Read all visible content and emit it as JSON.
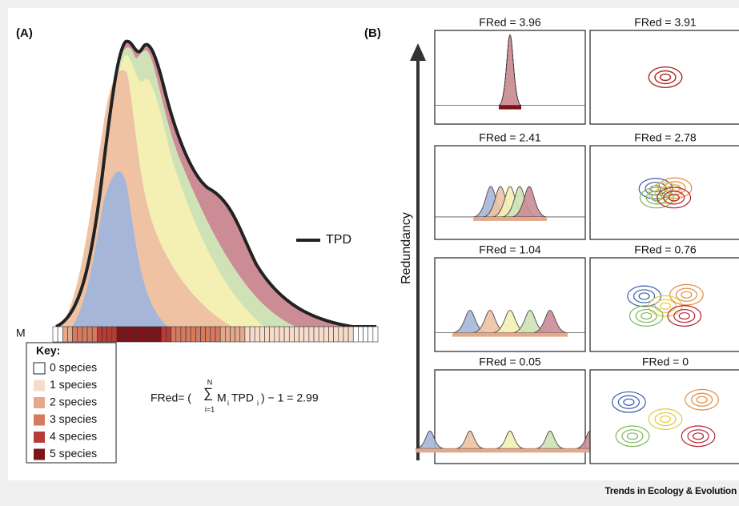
{
  "panel_a": {
    "label": "(A)",
    "legend": "TPD",
    "m_label": "M",
    "key": {
      "title": "Key:",
      "items": [
        "0 species",
        "1 species",
        "2 species",
        "3 species",
        "4 species",
        "5 species"
      ]
    },
    "formula": {
      "lhs": "FRed= (",
      "sum_sign": "∑",
      "sum_top": "N",
      "sum_bottom": "i=1",
      "m": "M",
      "m_sub": "i",
      "tpd": "TPD",
      "tpd_sub": "i",
      "rhs": ") − 1 = 2.99"
    }
  },
  "panel_b": {
    "label": "(B)",
    "axis_label": "Redundancy",
    "panels": [
      {
        "title": "FRed = 3.96"
      },
      {
        "title": "FRed = 3.91"
      },
      {
        "title": "FRed = 2.41"
      },
      {
        "title": "FRed = 2.78"
      },
      {
        "title": "FRed = 1.04"
      },
      {
        "title": "FRed = 0.76"
      },
      {
        "title": "FRed = 0.05"
      },
      {
        "title": "FRed = 0"
      }
    ]
  },
  "footer": "Trends in Ecology & Evolution"
}
